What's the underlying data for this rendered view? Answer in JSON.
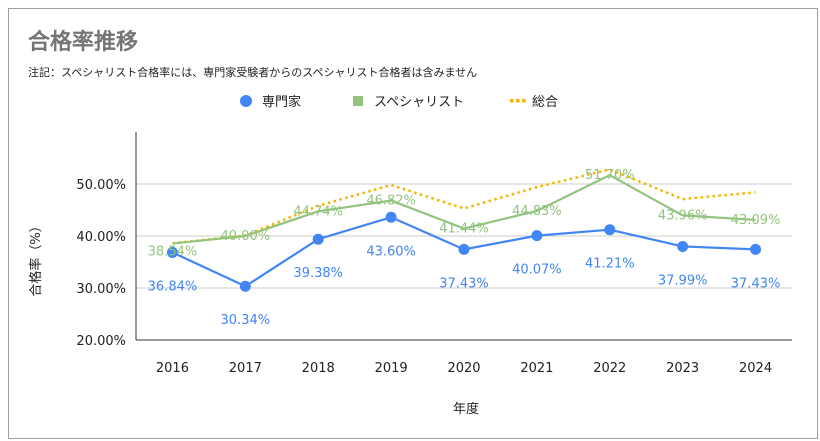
{
  "chart_data": {
    "type": "line",
    "title": "合格率推移",
    "subtitle": "注記：スペシャリスト合格率には、専門家受験者からのスペシャリスト合格者は含みません",
    "xlabel": "年度",
    "ylabel": "合格率（%）",
    "categories": [
      "2016",
      "2017",
      "2018",
      "2019",
      "2020",
      "2021",
      "2022",
      "2023",
      "2024"
    ],
    "ylim": [
      20,
      60
    ],
    "yticks": [
      20,
      30,
      40,
      50
    ],
    "ytick_labels": [
      "20.00%",
      "30.00%",
      "40.00%",
      "50.00%"
    ],
    "grid": true,
    "legend_position": "top",
    "series": [
      {
        "name": "専門家",
        "color": "#4285f4",
        "style": "solid-marker",
        "values": [
          36.84,
          30.34,
          39.38,
          43.6,
          37.43,
          40.07,
          41.21,
          37.99,
          37.43
        ],
        "labels": [
          "36.84%",
          "30.34%",
          "39.38%",
          "43.60%",
          "37.43%",
          "40.07%",
          "41.21%",
          "37.99%",
          "37.43%"
        ]
      },
      {
        "name": "スペシャリスト",
        "color": "#93c47d",
        "style": "solid",
        "values": [
          38.54,
          40.0,
          44.74,
          46.82,
          41.44,
          44.83,
          51.7,
          43.96,
          43.09
        ],
        "labels": [
          "38.54%",
          "40.00%",
          "44.74%",
          "46.82%",
          "41.44%",
          "44.83%",
          "51.70%",
          "43.96%",
          "43.09%"
        ]
      },
      {
        "name": "総合",
        "color": "#f4b400",
        "style": "dotted",
        "values": [
          38.6,
          40.1,
          45.8,
          49.8,
          45.3,
          49.4,
          52.8,
          47.1,
          48.4
        ]
      }
    ]
  }
}
